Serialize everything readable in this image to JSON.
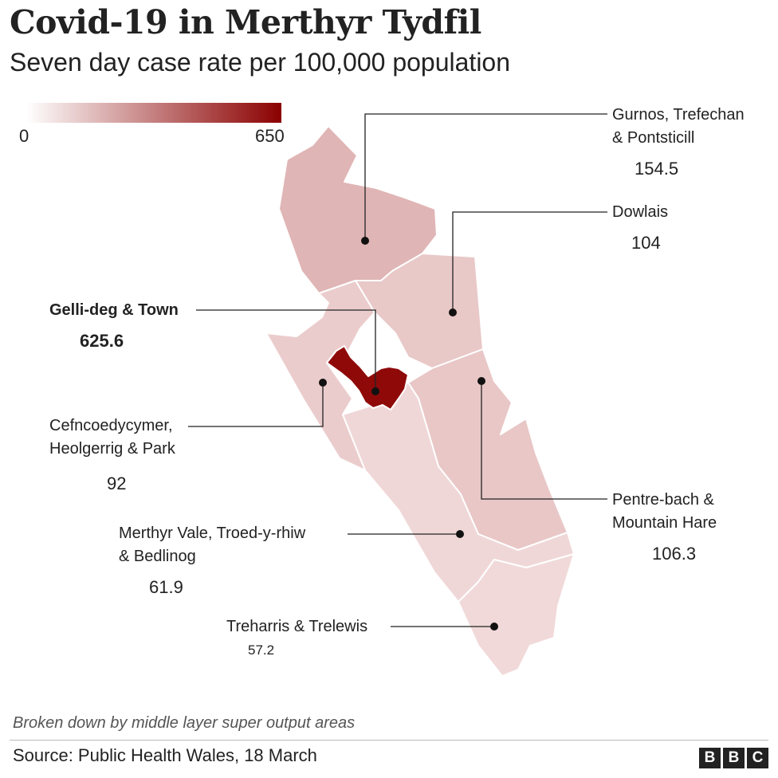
{
  "title": "Covid-19 in Merthyr Tydfil",
  "subtitle": "Seven day case rate per 100,000 population",
  "legend": {
    "min_label": "0",
    "max_label": "650",
    "min_value": 0,
    "max_value": 650,
    "color_low": "#fbeeee",
    "color_high": "#8b0000"
  },
  "areas": [
    {
      "name_lines": [
        "Gurnos, Trefechan",
        "& Pontsticill"
      ],
      "value": "154.5"
    },
    {
      "name_lines": [
        "Dowlais"
      ],
      "value": "104"
    },
    {
      "name_lines": [
        "Gelli-deg & Town"
      ],
      "value": "625.6",
      "highlight": true
    },
    {
      "name_lines": [
        "Cefncoedycymer,",
        "Heolgerrig & Park"
      ],
      "value": "92"
    },
    {
      "name_lines": [
        "Pentre-bach &",
        "Mountain Hare"
      ],
      "value": "106.3"
    },
    {
      "name_lines": [
        "Merthyr Vale, Troed-y-rhiw",
        "& Bedlinog"
      ],
      "value": "61.9"
    },
    {
      "name_lines": [
        "Treharris & Trelewis"
      ],
      "value": "57.2"
    }
  ],
  "note": "Broken down by middle layer super output areas",
  "source": "Source: Public Health Wales,  18 March",
  "logo": [
    "B",
    "B",
    "C"
  ]
}
